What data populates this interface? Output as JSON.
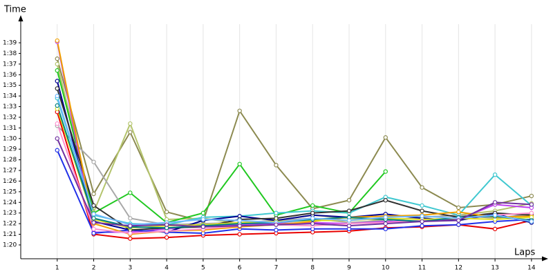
{
  "chart_data": {
    "type": "line",
    "y_label": "Time",
    "x_label": "Laps",
    "x": [
      1,
      2,
      3,
      4,
      5,
      6,
      7,
      8,
      9,
      10,
      11,
      12,
      13,
      14
    ],
    "xlim": [
      0,
      14.4
    ],
    "ylim": [
      78.7,
      101.4
    ],
    "xticks": [
      1,
      2,
      3,
      4,
      5,
      6,
      7,
      8,
      9,
      10,
      11,
      12,
      13,
      14
    ],
    "yticks": [
      {
        "value": 80,
        "label": "1:20"
      },
      {
        "value": 81,
        "label": "1:21"
      },
      {
        "value": 82,
        "label": "1:22"
      },
      {
        "value": 83,
        "label": "1:23"
      },
      {
        "value": 84,
        "label": "1:24"
      },
      {
        "value": 85,
        "label": "1:25"
      },
      {
        "value": 86,
        "label": "1:26"
      },
      {
        "value": 87,
        "label": "1:27"
      },
      {
        "value": 88,
        "label": "1:28"
      },
      {
        "value": 89,
        "label": "1:29"
      },
      {
        "value": 90,
        "label": "1:30"
      },
      {
        "value": 91,
        "label": "1:31"
      },
      {
        "value": 92,
        "label": "1:32"
      },
      {
        "value": 93,
        "label": "1:33"
      },
      {
        "value": 94,
        "label": "1:34"
      },
      {
        "value": 95,
        "label": "1:35"
      },
      {
        "value": 96,
        "label": "1:36"
      },
      {
        "value": 97,
        "label": "1:37"
      },
      {
        "value": 98,
        "label": "1:38"
      },
      {
        "value": 99,
        "label": "1:39"
      }
    ],
    "grid": "x",
    "series": [
      {
        "color": "#8c8a50",
        "values": [
          97.5,
          84.8,
          90.6,
          83.1,
          82.2,
          92.6,
          87.5,
          83.4,
          84.2,
          90.1,
          85.4,
          83.5,
          83.8,
          84.6
        ]
      },
      {
        "color": "#b4c46c",
        "values": [
          97.0,
          83.1,
          91.4,
          82.4,
          82.5,
          82.0,
          82.3,
          82.8,
          82.5,
          82.3,
          82.6,
          82.8,
          83.2,
          83.9
        ]
      },
      {
        "color": "#20c820",
        "values": [
          96.4,
          83.0,
          84.9,
          82.1,
          83.0,
          87.6,
          82.8,
          83.7,
          83.0,
          86.9,
          null,
          null,
          null,
          null
        ]
      },
      {
        "color": "#a8a8a8",
        "values": [
          91.2,
          87.8,
          82.5,
          81.9,
          82.0,
          82.1,
          82.3,
          82.5,
          82.1,
          82.3,
          82.6,
          82.8,
          82.5,
          82.9
        ]
      },
      {
        "color": "#40c8d0",
        "values": [
          93.8,
          82.8,
          82.0,
          81.9,
          82.6,
          82.7,
          83.0,
          83.2,
          83.0,
          84.5,
          83.7,
          82.8,
          86.6,
          83.7
        ]
      },
      {
        "color": "#e80000",
        "values": [
          92.5,
          81.0,
          80.6,
          80.7,
          80.9,
          81.0,
          81.1,
          81.2,
          81.3,
          81.6,
          81.7,
          81.9,
          81.5,
          82.3
        ]
      },
      {
        "color": "#c040f0",
        "values": [
          99.1,
          81.2,
          81.2,
          81.5,
          81.8,
          81.9,
          82.0,
          82.1,
          82.0,
          82.2,
          82.2,
          82.4,
          83.8,
          83.5
        ]
      },
      {
        "color": "#000090",
        "values": [
          95.4,
          82.2,
          81.4,
          81.2,
          82.3,
          82.7,
          82.3,
          82.8,
          82.6,
          82.9,
          82.5,
          82.3,
          82.9,
          82.1
        ]
      },
      {
        "color": "#2030e8",
        "values": [
          88.9,
          81.1,
          81.4,
          81.2,
          81.1,
          81.5,
          81.4,
          81.5,
          81.5,
          81.5,
          81.8,
          81.9,
          82.2,
          82.4
        ]
      },
      {
        "color": "#303030",
        "values": [
          94.7,
          83.7,
          81.4,
          81.6,
          81.7,
          82.4,
          82.5,
          83.0,
          83.2,
          84.2,
          83.2,
          82.6,
          83.0,
          82.8
        ]
      },
      {
        "color": "#f0a000",
        "values": [
          99.2,
          82.0,
          81.0,
          81.3,
          81.4,
          81.7,
          81.9,
          82.2,
          82.6,
          82.7,
          82.8,
          83.1,
          82.6,
          82.7
        ]
      },
      {
        "color": "#ff90d0",
        "values": [
          91.4,
          81.5,
          81.1,
          81.3,
          81.5,
          81.8,
          81.9,
          81.8,
          82.0,
          82.1,
          82.3,
          82.5,
          82.8,
          83.0
        ]
      },
      {
        "color": "#e0e020",
        "values": [
          92.8,
          82.4,
          81.6,
          81.8,
          81.9,
          82.1,
          82.2,
          82.3,
          82.3,
          82.5,
          82.4,
          82.5,
          82.4,
          82.6
        ]
      },
      {
        "color": "#008080",
        "values": [
          93.1,
          82.5,
          81.7,
          81.6,
          81.8,
          82.0,
          82.1,
          82.4,
          82.6,
          82.4,
          82.2,
          82.6,
          82.7,
          82.3
        ]
      },
      {
        "color": "#70b8ff",
        "values": [
          94.0,
          82.9,
          81.9,
          82.1,
          82.4,
          82.3,
          82.1,
          82.5,
          82.3,
          82.6,
          82.7,
          82.5,
          82.8,
          82.2
        ]
      },
      {
        "color": "#7030a0",
        "values": [
          90.0,
          82.1,
          81.8,
          81.9,
          81.7,
          81.8,
          81.9,
          82.0,
          81.8,
          82.0,
          82.2,
          82.3,
          84.0,
          83.8
        ]
      }
    ]
  }
}
